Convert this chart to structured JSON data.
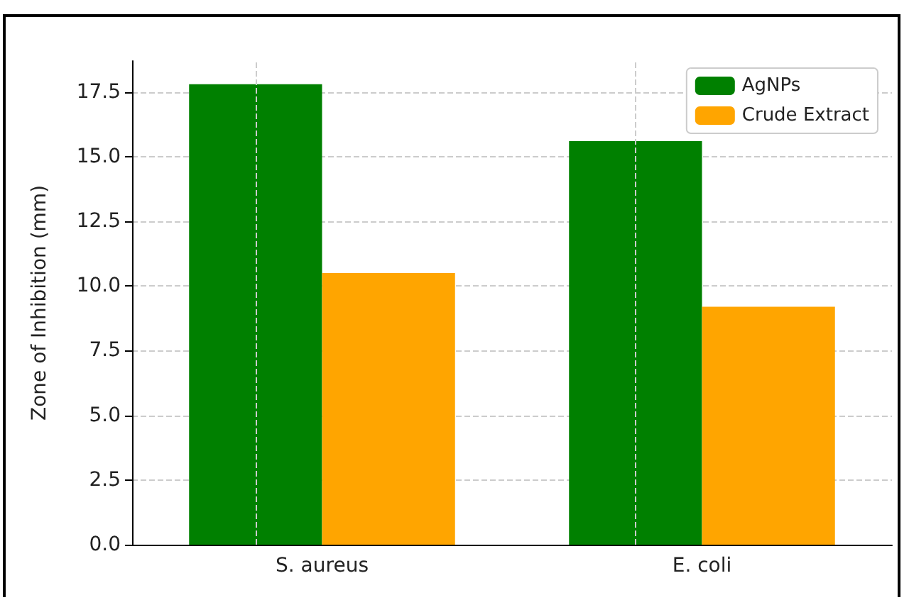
{
  "chart_data": {
    "type": "bar",
    "ylabel": "Zone of Inhibition (mm)",
    "categories": [
      "S. aureus",
      "E. coli"
    ],
    "series": [
      {
        "name": "AgNPs",
        "color": "#008000",
        "values": [
          17.8,
          15.6
        ]
      },
      {
        "name": "Crude Extract",
        "color": "#ffa500",
        "values": [
          10.5,
          9.2
        ]
      }
    ],
    "ylim": [
      0,
      18.7
    ],
    "yticks": [
      {
        "value": 0,
        "label": "0.0"
      },
      {
        "value": 2.5,
        "label": "2.5"
      },
      {
        "value": 5,
        "label": "5.0"
      },
      {
        "value": 7.5,
        "label": "7.5"
      },
      {
        "value": 10,
        "label": "10.0"
      },
      {
        "value": 12.5,
        "label": "12.5"
      },
      {
        "value": 15,
        "label": "15.0"
      },
      {
        "value": 17.5,
        "label": "17.5"
      }
    ],
    "grid": true,
    "legend": "top right"
  }
}
